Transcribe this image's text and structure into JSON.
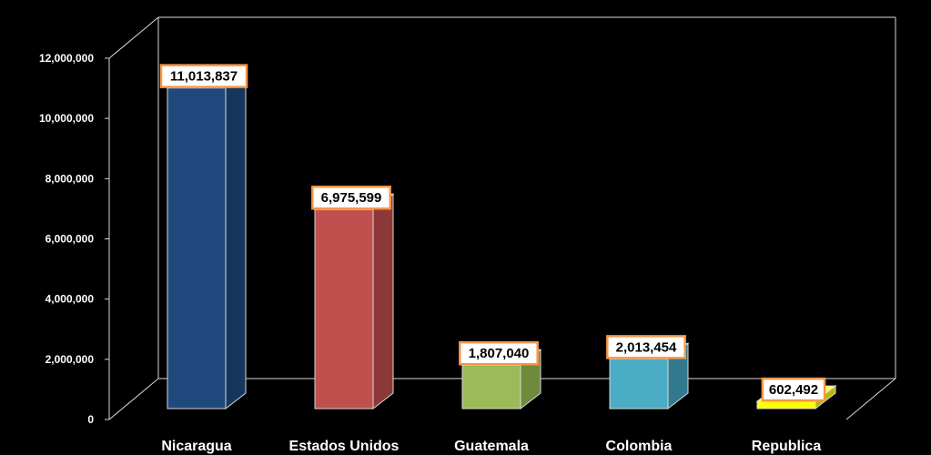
{
  "chart_data": {
    "type": "bar",
    "title": "",
    "xlabel": "",
    "ylabel": "",
    "categories": [
      "Nicaragua",
      "Estados Unidos",
      "Guatemala",
      "Colombia",
      "Republica"
    ],
    "values": [
      11013837,
      6975599,
      1807040,
      2013454,
      602492
    ],
    "value_labels": [
      "11,013,837",
      "6,975,599",
      "1,807,040",
      "2,013,454",
      "602,492"
    ],
    "y_ticks": [
      0,
      2000000,
      4000000,
      6000000,
      8000000,
      10000000,
      12000000
    ],
    "y_tick_labels": [
      "0",
      "2,000,000",
      "4,000,000",
      "6,000,000",
      "8,000,000",
      "10,000,000",
      "12,000,000"
    ],
    "ylim": [
      0,
      12000000
    ],
    "grid": false,
    "legend": "none",
    "style": "3d-column"
  },
  "colors": {
    "background": "#000000",
    "axis_lines": "#d9d9d9",
    "label_box_border": "#f79646",
    "label_box_fill": "#ffffff",
    "bars": [
      {
        "front": "#1f497d",
        "side": "#17365d",
        "top": "#2c5d97"
      },
      {
        "front": "#c0504d",
        "side": "#8c3836",
        "top": "#d2726f"
      },
      {
        "front": "#9bbb59",
        "side": "#6f8a3c",
        "top": "#b7d17e"
      },
      {
        "front": "#4bacc6",
        "side": "#317a8e",
        "top": "#7cc6da"
      },
      {
        "front": "#ffff00",
        "side": "#b8b800",
        "top": "#ffff66"
      }
    ]
  }
}
